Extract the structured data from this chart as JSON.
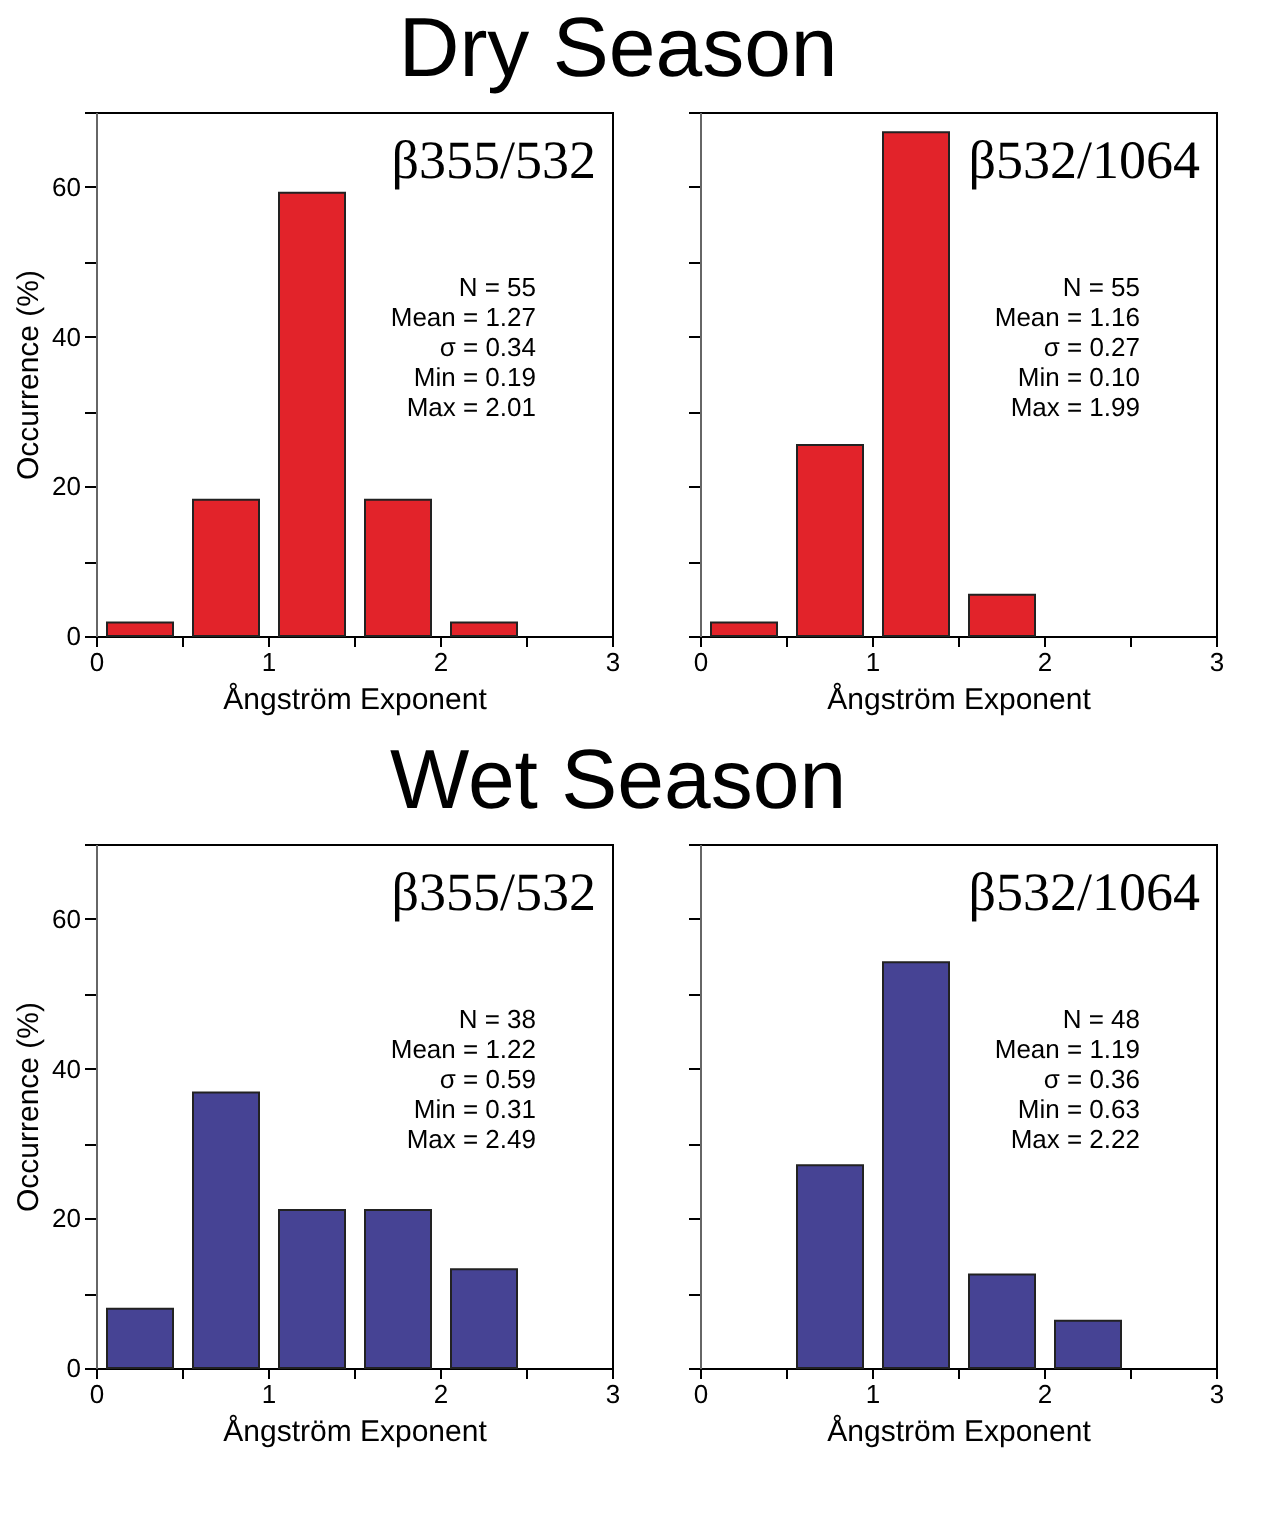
{
  "chart_data": [
    {
      "type": "histogram",
      "subtitle": "Dry Season",
      "title": "β355/532",
      "annotations": [
        "N = 55",
        "Mean = 1.27",
        "σ = 0.34",
        "Min = 0.19",
        "Max = 2.01"
      ],
      "xlabel": "Ångström Exponent",
      "ylabel": "Occurrence (%)",
      "bins": [
        0,
        0.5,
        1,
        1.5,
        2,
        2.5
      ],
      "values": [
        1.8,
        18.2,
        59.2,
        18.2,
        1.8
      ],
      "color": "#e2232a",
      "xlim": [
        0,
        3
      ],
      "ylim": [
        0,
        70
      ],
      "xticks": [
        0,
        {
          "value": 0.5,
          "label": null
        },
        1,
        {
          "value": 1.5,
          "label": null
        },
        2,
        {
          "value": 2.5,
          "label": null
        },
        3
      ],
      "yticks": [
        0,
        {
          "value": 10,
          "label": null
        },
        20,
        {
          "value": 30,
          "label": null
        },
        40,
        {
          "value": 50,
          "label": null
        },
        60,
        {
          "value": 70,
          "label": null
        }
      ]
    },
    {
      "type": "histogram",
      "title": "β532/1064",
      "annotations": [
        "N = 55",
        "Mean = 1.16",
        "σ = 0.27",
        "Min = 0.10",
        "Max = 1.99"
      ],
      "xlabel": "Ångström Exponent",
      "bins": [
        0,
        0.5,
        1,
        1.5,
        2,
        2.5
      ],
      "values": [
        1.8,
        25.5,
        67.3,
        5.5,
        0
      ],
      "color": "#e2232a",
      "xlim": [
        0,
        3
      ],
      "ylim": [
        0,
        70
      ],
      "xticks": [
        0,
        {
          "value": 0.5,
          "label": null
        },
        1,
        {
          "value": 1.5,
          "label": null
        },
        2,
        {
          "value": 2.5,
          "label": null
        },
        3
      ],
      "yticks": [
        {
          "value": 0,
          "label": null
        },
        {
          "value": 10,
          "label": null
        },
        {
          "value": 20,
          "label": null
        },
        {
          "value": 30,
          "label": null
        },
        {
          "value": 40,
          "label": null
        },
        {
          "value": 50,
          "label": null
        },
        {
          "value": 60,
          "label": null
        },
        {
          "value": 70,
          "label": null
        }
      ],
      "tick_labels": "x"
    },
    {
      "type": "histogram",
      "subtitle": "Wet Season",
      "title": "β355/532",
      "annotations": [
        "N = 38",
        "Mean = 1.22",
        "σ = 0.59",
        "Min = 0.31",
        "Max = 2.49"
      ],
      "xlabel": "Ångström Exponent",
      "ylabel": "Occurrence (%)",
      "bins": [
        0,
        0.5,
        1,
        1.5,
        2,
        2.5
      ],
      "values": [
        7.9,
        36.8,
        21.1,
        21.1,
        13.2
      ],
      "color": "#464394",
      "xlim": [
        0,
        3
      ],
      "ylim": [
        0,
        70
      ],
      "xticks": [
        0,
        {
          "value": 0.5,
          "label": null
        },
        1,
        {
          "value": 1.5,
          "label": null
        },
        2,
        {
          "value": 2.5,
          "label": null
        },
        3
      ],
      "yticks": [
        0,
        {
          "value": 10,
          "label": null
        },
        20,
        {
          "value": 30,
          "label": null
        },
        40,
        {
          "value": 50,
          "label": null
        },
        60,
        {
          "value": 70,
          "label": null
        }
      ]
    },
    {
      "type": "histogram",
      "title": "β532/1064",
      "annotations": [
        "N = 48",
        "Mean = 1.19",
        "σ = 0.36",
        "Min = 0.63",
        "Max = 2.22"
      ],
      "xlabel": "Ångström Exponent",
      "bins": [
        0,
        0.5,
        1,
        1.5,
        2,
        2.5
      ],
      "values": [
        0,
        27.1,
        54.2,
        12.5,
        6.3
      ],
      "color": "#464394",
      "xlim": [
        0,
        3
      ],
      "ylim": [
        0,
        70
      ],
      "xticks": [
        0,
        {
          "value": 0.5,
          "label": null
        },
        1,
        {
          "value": 1.5,
          "label": null
        },
        2,
        {
          "value": 2.5,
          "label": null
        },
        3
      ],
      "yticks": [
        {
          "value": 0,
          "label": null
        },
        {
          "value": 10,
          "label": null
        },
        {
          "value": 20,
          "label": null
        },
        {
          "value": 30,
          "label": null
        },
        {
          "value": 40,
          "label": null
        },
        {
          "value": 50,
          "label": null
        },
        {
          "value": 60,
          "label": null
        },
        {
          "value": 70,
          "label": null
        }
      ],
      "tick_labels": "x"
    }
  ]
}
